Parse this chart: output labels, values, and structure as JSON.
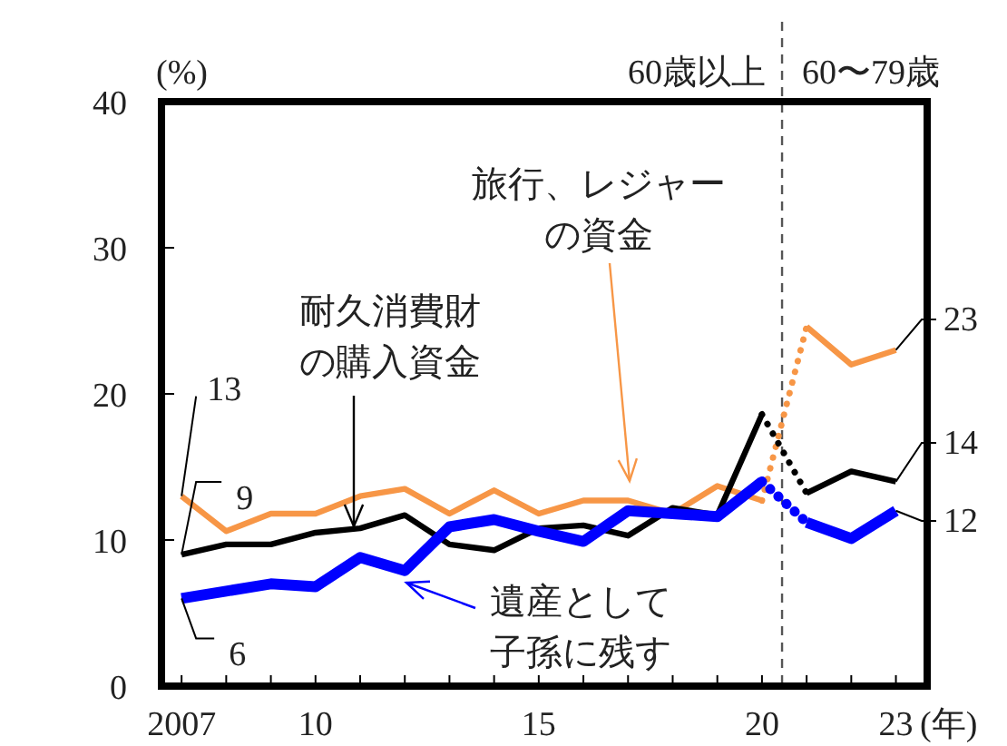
{
  "chart_data": {
    "type": "line",
    "ylabel": "(%)",
    "xlabel": "(年)",
    "xlim": [
      2006.55,
      2023.7
    ],
    "xticks": [
      {
        "value": 2007,
        "label": "2007"
      },
      {
        "value": 2008,
        "label": null
      },
      {
        "value": 2009,
        "label": null
      },
      {
        "value": 2010,
        "label": "10"
      },
      {
        "value": 2011,
        "label": null
      },
      {
        "value": 2012,
        "label": null
      },
      {
        "value": 2013,
        "label": null
      },
      {
        "value": 2014,
        "label": null
      },
      {
        "value": 2015,
        "label": "15"
      },
      {
        "value": 2016,
        "label": null
      },
      {
        "value": 2017,
        "label": null
      },
      {
        "value": 2018,
        "label": null
      },
      {
        "value": 2019,
        "label": null
      },
      {
        "value": 2020,
        "label": "20"
      },
      {
        "value": 2021,
        "label": null
      },
      {
        "value": 2022,
        "label": null
      },
      {
        "value": 2023,
        "label": "23"
      }
    ],
    "ylim": [
      0,
      40
    ],
    "yticks": [
      0,
      10,
      20,
      30,
      40
    ],
    "series": [
      {
        "name": "旅行、レジャーの資金",
        "color": "#f79646",
        "x": [
          2007,
          2008,
          2009,
          2010,
          2011,
          2012,
          2013,
          2014,
          2015,
          2016,
          2017,
          2018,
          2019,
          2020
        ],
        "values": [
          13,
          10.6,
          11.8,
          11.8,
          13.0,
          13.5,
          11.8,
          13.4,
          11.8,
          12.7,
          12.7,
          11.8,
          13.7,
          12.7
        ],
        "value_labels": [
          "13",
          null,
          null,
          null,
          null,
          null,
          null,
          null,
          null,
          null,
          null,
          null,
          null,
          null
        ]
      },
      {
        "name": "耐久消費財の購入資金",
        "color": "#000000",
        "x": [
          2007,
          2008,
          2009,
          2010,
          2011,
          2012,
          2013,
          2014,
          2015,
          2016,
          2017,
          2018,
          2019,
          2020
        ],
        "values": [
          9,
          9.7,
          9.7,
          10.5,
          10.8,
          11.7,
          9.7,
          9.3,
          10.8,
          11.0,
          10.3,
          12.2,
          11.7,
          18.6
        ],
        "value_labels": [
          "9",
          null,
          null,
          null,
          null,
          null,
          null,
          null,
          null,
          null,
          null,
          null,
          null,
          null
        ]
      },
      {
        "name": "遺産として子孫に残す",
        "color": "#0000ff",
        "x": [
          2007,
          2008,
          2009,
          2010,
          2011,
          2012,
          2013,
          2014,
          2015,
          2016,
          2017,
          2018,
          2019,
          2020
        ],
        "values": [
          6,
          6.5,
          7.0,
          6.8,
          8.8,
          7.9,
          10.9,
          11.4,
          10.6,
          9.9,
          12.0,
          11.8,
          11.6,
          14.0
        ],
        "value_labels": [
          "6",
          null,
          null,
          null,
          null,
          null,
          null,
          null,
          null,
          null,
          null,
          null,
          null,
          null
        ]
      },
      {
        "color": "#f79646",
        "x": [
          2021,
          2022,
          2023
        ],
        "values": [
          24.6,
          22.0,
          23
        ],
        "value_labels": [
          null,
          null,
          "23"
        ]
      },
      {
        "color": "#000000",
        "x": [
          2021,
          2022,
          2023
        ],
        "values": [
          13.2,
          14.7,
          14
        ],
        "value_labels": [
          null,
          null,
          "14"
        ]
      },
      {
        "color": "#0000ff",
        "x": [
          2021,
          2022,
          2023
        ],
        "values": [
          11.2,
          10.1,
          12
        ],
        "value_labels": [
          null,
          null,
          "12"
        ]
      },
      {
        "color": "#f79646",
        "line_style": "dotted",
        "x": [
          2020,
          2021
        ],
        "values": [
          12.7,
          24.6
        ]
      },
      {
        "color": "#000000",
        "line_style": "dotted",
        "x": [
          2020,
          2021
        ],
        "values": [
          18.6,
          13.2
        ]
      },
      {
        "color": "#0000ff",
        "line_style": "dotted",
        "x": [
          2020,
          2021
        ],
        "values": [
          14.0,
          11.2
        ]
      }
    ],
    "ref_lines": [
      {
        "axis": "x",
        "value": 2020.45,
        "color": "#555555",
        "line_style": "dashed"
      }
    ],
    "annotations": [
      "60歳以上",
      "60〜79歳"
    ]
  }
}
